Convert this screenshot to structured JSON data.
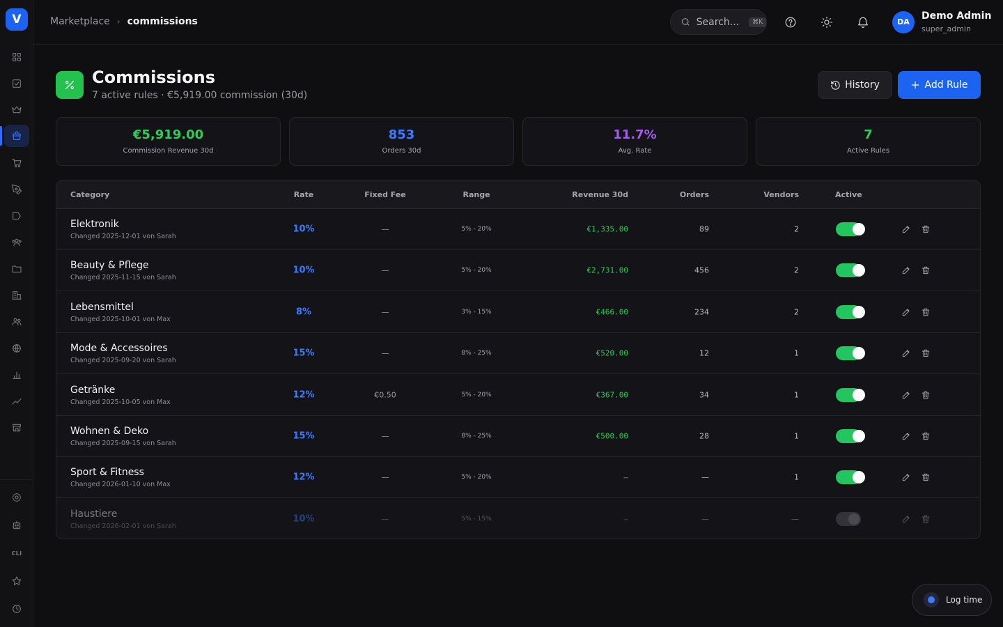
{
  "app": {
    "logo_letter": "V"
  },
  "breadcrumb": {
    "parent": "Marketplace",
    "separator": "›",
    "current": "commissions"
  },
  "search": {
    "placeholder": "Search...",
    "shortcut": "⌘K"
  },
  "user": {
    "initials": "DA",
    "name": "Demo Admin",
    "role": "super_admin"
  },
  "header": {
    "title": "Commissions",
    "subtitle": "7 active rules · €5,919.00 commission (30d)",
    "history_label": "History",
    "add_rule_label": "Add Rule"
  },
  "stats": [
    {
      "value": "€5,919.00",
      "label": "Commission Revenue 30d",
      "color": "#2ecc5a"
    },
    {
      "value": "853",
      "label": "Orders 30d",
      "color": "#3b7bff"
    },
    {
      "value": "11.7%",
      "label": "Avg. Rate",
      "color": "#a35de8"
    },
    {
      "value": "7",
      "label": "Active Rules",
      "color": "#2ecc5a"
    }
  ],
  "table": {
    "columns": {
      "category": "Category",
      "rate": "Rate",
      "fixed_fee": "Fixed Fee",
      "range": "Range",
      "revenue": "Revenue 30d",
      "orders": "Orders",
      "vendors": "Vendors",
      "active": "Active"
    },
    "rows": [
      {
        "name": "Elektronik",
        "meta": "Changed 2025-12-01 von Sarah",
        "rate": "10%",
        "fee": "—",
        "range": "5% - 20%",
        "revenue": "€1,335.00",
        "orders": "89",
        "vendors": "2",
        "active": true
      },
      {
        "name": "Beauty & Pflege",
        "meta": "Changed 2025-11-15 von Sarah",
        "rate": "10%",
        "fee": "—",
        "range": "5% - 20%",
        "revenue": "€2,731.00",
        "orders": "456",
        "vendors": "2",
        "active": true
      },
      {
        "name": "Lebensmittel",
        "meta": "Changed 2025-10-01 von Max",
        "rate": "8%",
        "fee": "—",
        "range": "3% - 15%",
        "revenue": "€466.00",
        "orders": "234",
        "vendors": "2",
        "active": true
      },
      {
        "name": "Mode & Accessoires",
        "meta": "Changed 2025-09-20 von Sarah",
        "rate": "15%",
        "fee": "—",
        "range": "8% - 25%",
        "revenue": "€520.00",
        "orders": "12",
        "vendors": "1",
        "active": true
      },
      {
        "name": "Getränke",
        "meta": "Changed 2025-10-05 von Max",
        "rate": "12%",
        "fee": "€0.50",
        "range": "5% - 20%",
        "revenue": "€367.00",
        "orders": "34",
        "vendors": "1",
        "active": true
      },
      {
        "name": "Wohnen & Deko",
        "meta": "Changed 2025-09-15 von Sarah",
        "rate": "15%",
        "fee": "—",
        "range": "8% - 25%",
        "revenue": "€500.00",
        "orders": "28",
        "vendors": "1",
        "active": true
      },
      {
        "name": "Sport & Fitness",
        "meta": "Changed 2026-01-10 von Max",
        "rate": "12%",
        "fee": "—",
        "range": "5% - 20%",
        "revenue": "—",
        "orders": "—",
        "vendors": "1",
        "active": true
      },
      {
        "name": "Haustiere",
        "meta": "Changed 2026-02-01 von Sarah",
        "rate": "10%",
        "fee": "—",
        "range": "5% - 15%",
        "revenue": "—",
        "orders": "—",
        "vendors": "—",
        "active": false
      }
    ]
  },
  "sidebar": {
    "cli_label": "CLI",
    "items": [
      {
        "icon": "dashboard-grid-icon"
      },
      {
        "icon": "checkbox-tasks-icon"
      },
      {
        "icon": "crown-icon"
      },
      {
        "icon": "shopping-bag-icon",
        "active": true
      },
      {
        "icon": "shopping-cart-icon"
      },
      {
        "icon": "pen-tool-icon"
      },
      {
        "icon": "tag-arrow-icon"
      },
      {
        "icon": "users-group-icon"
      },
      {
        "icon": "folder-icon"
      },
      {
        "icon": "building-icon"
      },
      {
        "icon": "team-icon"
      },
      {
        "icon": "globe-icon"
      },
      {
        "icon": "bar-chart-icon"
      },
      {
        "icon": "trend-line-icon"
      },
      {
        "icon": "store-icon"
      },
      {
        "icon": "settings-icon"
      },
      {
        "icon": "calendar-robot-icon"
      },
      {
        "icon": "cli-icon"
      },
      {
        "icon": "star-icon"
      },
      {
        "icon": "clock-icon"
      }
    ]
  },
  "log_time": {
    "label": "Log time"
  }
}
